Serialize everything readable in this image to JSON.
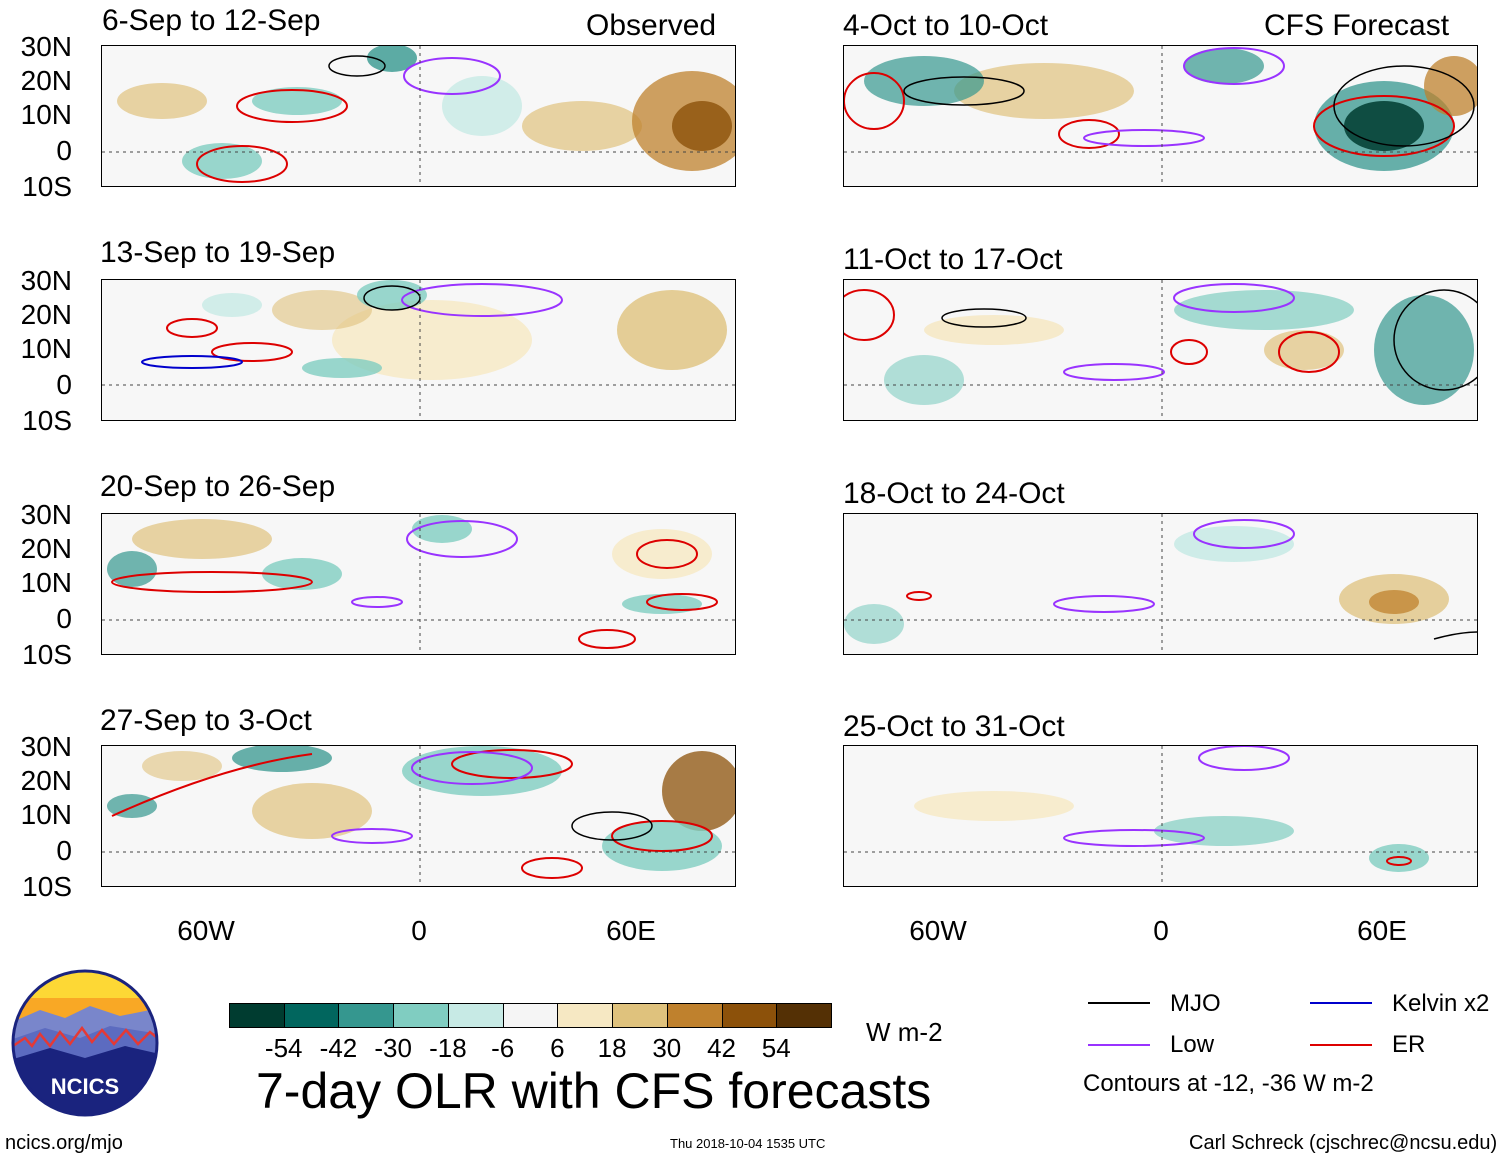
{
  "panels_left_header": "Observed",
  "panels_right_header": "CFS Forecast",
  "observed_periods": [
    "6-Sep to 12-Sep",
    "13-Sep to 19-Sep",
    "20-Sep to 26-Sep",
    "27-Sep to 3-Oct"
  ],
  "forecast_periods": [
    "4-Oct to 10-Oct",
    "11-Oct to 17-Oct",
    "18-Oct to 24-Oct",
    "25-Oct to 31-Oct"
  ],
  "lat_labels": [
    "30N",
    "20N",
    "10N",
    "0",
    "10S"
  ],
  "lon_labels": [
    "60W",
    "0",
    "60E"
  ],
  "colorbar": {
    "ticks": [
      "-54",
      "-42",
      "-30",
      "-18",
      "-6",
      "6",
      "18",
      "30",
      "42",
      "54"
    ],
    "colors": [
      "#003c30",
      "#01665e",
      "#35978f",
      "#80cdc1",
      "#c7eae5",
      "#f5f5f5",
      "#f6e8c3",
      "#dfc27d",
      "#bf812d",
      "#8c510a",
      "#543005"
    ],
    "units": "W m-2"
  },
  "main_title": "7-day OLR with CFS forecasts",
  "legend": {
    "items": [
      {
        "label": "MJO",
        "color": "#000000"
      },
      {
        "label": "Kelvin x2",
        "color": "#0000cc"
      },
      {
        "label": "Low",
        "color": "#9933ff"
      },
      {
        "label": "ER",
        "color": "#dd0000"
      }
    ],
    "note": "Contours at -12, -36 W m-2"
  },
  "logo_text": "NCICS",
  "footer": {
    "url": "ncics.org/mjo",
    "timestamp": "Thu 2018-10-04 1535 UTC",
    "credit": "Carl Schreck (cjschrec@ncsu.edu)"
  }
}
